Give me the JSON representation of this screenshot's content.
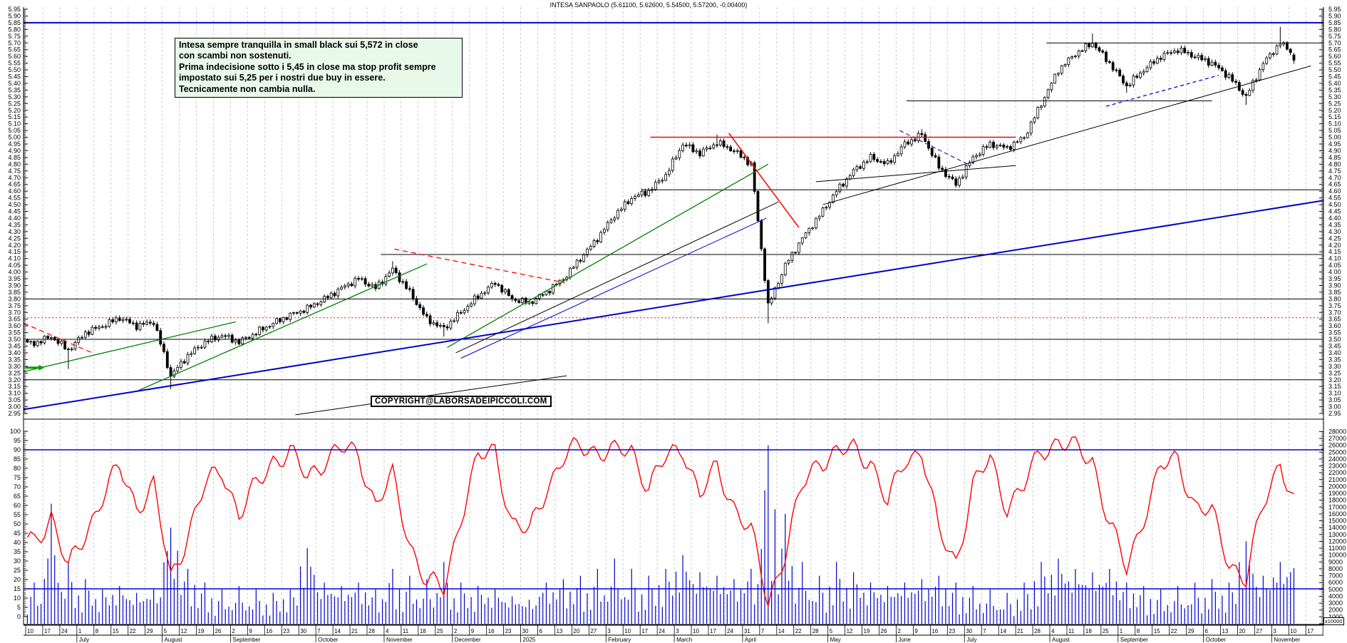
{
  "window": {
    "title": "INTESA SANPAOLO (5.61100, 5.62600, 5.54500, 5.57200, -0.00400)"
  },
  "annotation": {
    "lines": [
      "Intesa sempre tranquilla in small black sui 5,572 in close",
      "con scambi non sostenuti.",
      "Prima indecisione sotto i 5,45 in close ma stop profit sempre",
      "impostato sui 5,25 per i nostri due buy in essere.",
      "Tecnicamente non cambia nulla."
    ],
    "background": "#e9f9e9"
  },
  "copyright": {
    "text": "COPYRIGHT@LABORSADEIPICCOLI.COM"
  },
  "volume_multiplier_label": "x10000",
  "chart_data": {
    "type": "candlestick",
    "title": "INTESA SANPAOLO (5.61100, 5.62600, 5.54500, 5.57200, -0.00400)",
    "grid": "vertical-weekly-dashed",
    "colors": {
      "up_candle": "#ffffff",
      "down_candle": "#000000",
      "wick": "#000000",
      "oscillator": "#ff0000",
      "volume": "#0000cc",
      "level_blue": "#0000dd",
      "grid": "#cdcdcd",
      "trend_green": "#008000",
      "trend_blue": "#0000cc",
      "resistance_red": "#ff0000"
    },
    "price_axis": {
      "min": 2.95,
      "max": 5.95,
      "label_step": 0.05,
      "minor_step": 0.01,
      "side": "both"
    },
    "oscillator_axis": {
      "min": 0,
      "max": 100,
      "label_step": 5,
      "side": "left"
    },
    "volume_axis": {
      "min": 0,
      "max": 28000,
      "label_step": 1000,
      "multiplier": "x10000",
      "side": "right"
    },
    "last_quote": {
      "open": 5.611,
      "high": 5.626,
      "low": 5.545,
      "close": 5.572,
      "change": -0.004
    },
    "x_axis": {
      "day_cells": [
        "10",
        "17",
        "24",
        "1",
        "8",
        "15",
        "22",
        "29",
        "5",
        "12",
        "19",
        "26",
        "2",
        "9",
        "16",
        "23",
        "30",
        "7",
        "14",
        "21",
        "28",
        "4",
        "11",
        "18",
        "25",
        "2",
        "9",
        "16",
        "23",
        "30",
        "6",
        "13",
        "20",
        "27",
        "3",
        "10",
        "17",
        "24",
        "3",
        "10",
        "17",
        "24",
        "31",
        "7",
        "14",
        "22",
        "28",
        "5",
        "12",
        "19",
        "26",
        "2",
        "9",
        "16",
        "23",
        "30",
        "7",
        "14",
        "21",
        "28",
        "4",
        "11",
        "18",
        "25",
        "1",
        "8",
        "15",
        "22",
        "29",
        "6",
        "13",
        "20",
        "27",
        "3",
        "10",
        "17"
      ],
      "months": [
        {
          "label": "July",
          "cell": 3
        },
        {
          "label": "August",
          "cell": 8
        },
        {
          "label": "September",
          "cell": 12
        },
        {
          "label": "October",
          "cell": 17
        },
        {
          "label": "November",
          "cell": 21
        },
        {
          "label": "December",
          "cell": 25
        },
        {
          "label": "2025",
          "cell": 29
        },
        {
          "label": "February",
          "cell": 34
        },
        {
          "label": "March",
          "cell": 38
        },
        {
          "label": "April",
          "cell": 42
        },
        {
          "label": "May",
          "cell": 47
        },
        {
          "label": "June",
          "cell": 51
        },
        {
          "label": "July",
          "cell": 55
        },
        {
          "label": "August",
          "cell": 60
        },
        {
          "label": "September",
          "cell": 64
        },
        {
          "label": "October",
          "cell": 69
        },
        {
          "label": "November",
          "cell": 73
        }
      ]
    },
    "weekly_close": [
      3.47,
      3.52,
      3.42,
      3.55,
      3.6,
      3.66,
      3.6,
      3.63,
      3.23,
      3.38,
      3.48,
      3.53,
      3.48,
      3.55,
      3.62,
      3.68,
      3.73,
      3.8,
      3.88,
      3.95,
      3.88,
      4.02,
      3.85,
      3.65,
      3.58,
      3.7,
      3.82,
      3.92,
      3.8,
      3.77,
      3.85,
      3.95,
      4.1,
      4.25,
      4.42,
      4.55,
      4.6,
      4.72,
      4.95,
      4.88,
      4.96,
      4.9,
      4.8,
      3.75,
      4.05,
      4.25,
      4.42,
      4.6,
      4.75,
      4.85,
      4.8,
      4.95,
      5.02,
      4.78,
      4.65,
      4.85,
      4.95,
      4.92,
      5.0,
      5.25,
      5.5,
      5.62,
      5.7,
      5.55,
      5.38,
      5.5,
      5.6,
      5.65,
      5.6,
      5.55,
      5.45,
      5.3,
      5.55,
      5.7,
      5.6,
      5.57
    ],
    "weekly_oscillator": [
      40,
      55,
      25,
      45,
      65,
      80,
      60,
      70,
      20,
      45,
      70,
      80,
      55,
      70,
      85,
      88,
      75,
      85,
      90,
      88,
      60,
      75,
      40,
      18,
      15,
      55,
      85,
      90,
      50,
      45,
      70,
      85,
      92,
      90,
      88,
      90,
      70,
      85,
      92,
      65,
      80,
      60,
      45,
      8,
      35,
      70,
      85,
      88,
      90,
      85,
      60,
      85,
      90,
      45,
      30,
      70,
      85,
      60,
      70,
      90,
      95,
      90,
      85,
      50,
      25,
      55,
      80,
      85,
      60,
      55,
      30,
      20,
      60,
      85,
      55,
      50
    ],
    "weekly_volume": [
      6000,
      17500,
      9000,
      6500,
      5000,
      5500,
      4500,
      5000,
      14000,
      8000,
      6000,
      5000,
      5500,
      5000,
      4500,
      5000,
      11000,
      6000,
      5500,
      6000,
      5000,
      8000,
      7000,
      6500,
      9000,
      6000,
      5500,
      5000,
      4000,
      3500,
      6000,
      6500,
      7000,
      8000,
      9500,
      8000,
      7000,
      8000,
      10000,
      7500,
      7000,
      6500,
      8000,
      26000,
      16000,
      9000,
      7000,
      9000,
      7500,
      6000,
      5500,
      6000,
      6500,
      7000,
      6000,
      5500,
      5000,
      4500,
      6000,
      9000,
      9500,
      8000,
      7500,
      8000,
      6000,
      5500,
      5000,
      5500,
      6000,
      6500,
      6000,
      12000,
      7000,
      9000,
      11000,
      8000
    ],
    "week_low_extremes": {
      "2": 3.28,
      "8": 3.13,
      "24": 3.52,
      "43": 3.62,
      "64": 5.33,
      "71": 5.24
    },
    "week_high_extremes": {
      "21": 4.08,
      "40": 5.02,
      "52": 5.06,
      "62": 5.77,
      "73": 5.82
    },
    "oscillator_levels": [
      90,
      15
    ],
    "horizontal_lines": [
      {
        "price": 5.85,
        "w1": -0.12,
        "w2": 76,
        "color": "#0000dd",
        "width": 2,
        "dash": ""
      },
      {
        "price": 5.7,
        "w1": 59.8,
        "w2": 76,
        "color": "#000000",
        "width": 1,
        "dash": ""
      },
      {
        "price": 5.27,
        "w1": 51.6,
        "w2": 69.5,
        "color": "#000000",
        "width": 1,
        "dash": ""
      },
      {
        "price": 5.0,
        "w1": 36.6,
        "w2": 58.0,
        "color": "#ff0000",
        "width": 1.5,
        "dash": ""
      },
      {
        "price": 4.61,
        "w1": 36.1,
        "w2": 76,
        "color": "#000000",
        "width": 1,
        "dash": ""
      },
      {
        "price": 4.13,
        "w1": 20.8,
        "w2": 76,
        "color": "#000000",
        "width": 1,
        "dash": ""
      },
      {
        "price": 3.8,
        "w1": -0.12,
        "w2": 76,
        "color": "#000000",
        "width": 1,
        "dash": ""
      },
      {
        "price": 3.66,
        "w1": -0.12,
        "w2": 76,
        "color": "#ff0000",
        "width": 1,
        "dash": "2,3"
      },
      {
        "price": 3.5,
        "w1": -0.12,
        "w2": 76,
        "color": "#000000",
        "width": 1,
        "dash": ""
      },
      {
        "price": 3.2,
        "w1": -0.12,
        "w2": 76,
        "color": "#000000",
        "width": 1,
        "dash": ""
      }
    ],
    "trendlines": [
      {
        "name": "green-support-a",
        "w1": -0.12,
        "p1": 3.26,
        "w2": 12.3,
        "p2": 3.63,
        "color": "#008000",
        "width": 1.3,
        "dash": ""
      },
      {
        "name": "green-support-b",
        "w1": 6.6,
        "p1": 3.12,
        "w2": 23.5,
        "p2": 4.06,
        "color": "#008000",
        "width": 1.3,
        "dash": ""
      },
      {
        "name": "green-support-c",
        "w1": 24.7,
        "p1": 3.44,
        "w2": 43.5,
        "p2": 4.8,
        "color": "#008000",
        "width": 1.3,
        "dash": ""
      },
      {
        "name": "black-fan-nov-low",
        "w1": 25.2,
        "p1": 3.4,
        "w2": 44.1,
        "p2": 4.52,
        "color": "#000000",
        "width": 1,
        "dash": ""
      },
      {
        "name": "blue-fan-nov-low",
        "w1": 25.5,
        "p1": 3.36,
        "w2": 43.4,
        "p2": 4.4,
        "color": "#0000cc",
        "width": 1,
        "dash": ""
      },
      {
        "name": "black-long-bottom",
        "w1": 15.8,
        "p1": 2.94,
        "w2": 31.7,
        "p2": 3.23,
        "color": "#000000",
        "width": 1,
        "dash": ""
      },
      {
        "name": "black-rising-right",
        "w1": 46.7,
        "p1": 4.5,
        "w2": 75.3,
        "p2": 5.53,
        "color": "#000000",
        "width": 1,
        "dash": ""
      },
      {
        "name": "black-flat-mid",
        "w1": 46.3,
        "p1": 4.67,
        "w2": 58.0,
        "p2": 4.79,
        "color": "#000000",
        "width": 1,
        "dash": ""
      },
      {
        "name": "blue-longterm",
        "w1": -0.12,
        "p1": 2.98,
        "w2": 76.0,
        "p2": 4.53,
        "color": "#0000cc",
        "width": 2,
        "dash": ""
      },
      {
        "name": "red-dashed-left",
        "w1": -0.12,
        "p1": 3.62,
        "w2": 3.9,
        "p2": 3.4,
        "color": "#ff0000",
        "width": 1.3,
        "dash": "7,5"
      },
      {
        "name": "red-dashed-mid",
        "w1": 21.6,
        "p1": 4.17,
        "w2": 31.6,
        "p2": 3.92,
        "color": "#ff0000",
        "width": 1.3,
        "dash": "7,5"
      },
      {
        "name": "red-steep-april",
        "w1": 41.2,
        "p1": 5.03,
        "w2": 45.3,
        "p2": 4.33,
        "color": "#ff0000",
        "width": 1.5,
        "dash": ""
      },
      {
        "name": "navy-dashed-june",
        "w1": 51.2,
        "p1": 5.05,
        "w2": 55.2,
        "p2": 4.8,
        "color": "#333399",
        "width": 1.3,
        "dash": "6,4"
      },
      {
        "name": "blue-dashed-sep",
        "w1": 63.3,
        "p1": 5.23,
        "w2": 69.9,
        "p2": 5.46,
        "color": "#0000ee",
        "width": 1.3,
        "dash": "5,4"
      }
    ],
    "green_arrow": {
      "w1": 0.0,
      "w2": 0.85,
      "price": 3.29,
      "color": "#00a000"
    }
  }
}
